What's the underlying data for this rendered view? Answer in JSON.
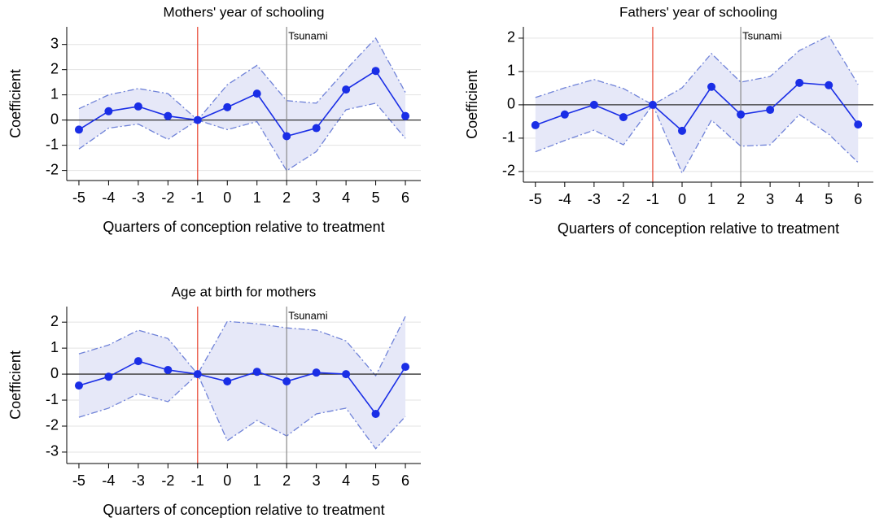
{
  "chart_data": [
    {
      "type": "line",
      "title": "Mothers' year of schooling",
      "xlabel": "Quarters of conception relative to treatment",
      "ylabel": "Coefficient",
      "x": [
        -5,
        -4,
        -3,
        -2,
        -1,
        0,
        1,
        2,
        3,
        4,
        5,
        6
      ],
      "values": [
        -0.38,
        0.35,
        0.54,
        0.16,
        0,
        0.51,
        1.05,
        -0.64,
        -0.32,
        1.21,
        1.95,
        0.16
      ],
      "upper": [
        0.45,
        1.0,
        1.25,
        1.05,
        0,
        1.4,
        2.17,
        0.77,
        0.67,
        2.0,
        3.25,
        1.1
      ],
      "lower": [
        -1.15,
        -0.32,
        -0.16,
        -0.77,
        0,
        -0.38,
        -0.06,
        -2.01,
        -1.25,
        0.41,
        0.67,
        -0.73
      ],
      "xlim": [
        -5.41,
        6.52
      ],
      "ylim": [
        -2.4,
        3.7
      ],
      "xticks": [
        -5,
        -4,
        -3,
        -2,
        -1,
        0,
        1,
        2,
        3,
        4,
        5,
        6
      ],
      "yticks": [
        -2,
        -1,
        0,
        1,
        2,
        3
      ],
      "hline": 0,
      "vlines": [
        {
          "x": -1,
          "color": "#e8402c"
        },
        {
          "x": 2,
          "color": "#8a8a8a",
          "label": "Tsunami"
        }
      ],
      "color": "#1a2ee6",
      "band_color": "#e6e8f8",
      "band_edge": "#6f82d8",
      "grid": true
    },
    {
      "type": "line",
      "title": "Fathers' year of schooling",
      "xlabel": "Quarters of conception relative to treatment",
      "ylabel": "Coefficient",
      "x": [
        -5,
        -4,
        -3,
        -2,
        -1,
        0,
        1,
        2,
        3,
        4,
        5,
        6
      ],
      "values": [
        -0.61,
        -0.29,
        0,
        -0.37,
        0,
        -0.78,
        0.54,
        -0.29,
        -0.15,
        0.66,
        0.59,
        -0.59
      ],
      "upper": [
        0.22,
        0.51,
        0.76,
        0.49,
        0,
        0.51,
        1.54,
        0.68,
        0.85,
        1.63,
        2.07,
        0.61
      ],
      "lower": [
        -1.41,
        -1.07,
        -0.76,
        -1.2,
        0,
        -2.05,
        -0.46,
        -1.24,
        -1.2,
        -0.29,
        -0.88,
        -1.73
      ],
      "xlim": [
        -5.41,
        6.52
      ],
      "ylim": [
        -2.32,
        2.34
      ],
      "xticks": [
        -5,
        -4,
        -3,
        -2,
        -1,
        0,
        1,
        2,
        3,
        4,
        5,
        6
      ],
      "yticks": [
        -2,
        -1,
        0,
        1,
        2
      ],
      "hline": 0,
      "vlines": [
        {
          "x": -1,
          "color": "#e8402c"
        },
        {
          "x": 2,
          "color": "#8a8a8a",
          "label": "Tsunami"
        }
      ],
      "color": "#1a2ee6",
      "band_color": "#e6e8f8",
      "band_edge": "#6f82d8",
      "grid": true
    },
    {
      "type": "line",
      "title": "Age at birth for mothers",
      "xlabel": "Quarters of conception relative to treatment",
      "ylabel": "Coefficient",
      "x": [
        -5,
        -4,
        -3,
        -2,
        -1,
        0,
        1,
        2,
        3,
        4,
        5,
        6
      ],
      "values": [
        -0.44,
        -0.1,
        0.5,
        0.16,
        0,
        -0.28,
        0.09,
        -0.28,
        0.06,
        0,
        -1.53,
        0.28
      ],
      "upper": [
        0.78,
        1.12,
        1.69,
        1.37,
        0,
        2.03,
        1.94,
        1.78,
        1.69,
        1.28,
        -0.06,
        2.22
      ],
      "lower": [
        -1.66,
        -1.31,
        -0.75,
        -1.06,
        0,
        -2.56,
        -1.78,
        -2.38,
        -1.53,
        -1.31,
        -2.87,
        -1.63
      ],
      "xlim": [
        -5.41,
        6.52
      ],
      "ylim": [
        -3.44,
        2.6
      ],
      "xticks": [
        -5,
        -4,
        -3,
        -2,
        -1,
        0,
        1,
        2,
        3,
        4,
        5,
        6
      ],
      "yticks": [
        -3,
        -2,
        -1,
        0,
        1,
        2
      ],
      "hline": 0,
      "vlines": [
        {
          "x": -1,
          "color": "#e8402c"
        },
        {
          "x": 2,
          "color": "#8a8a8a",
          "label": "Tsunami"
        }
      ],
      "color": "#1a2ee6",
      "band_color": "#e6e8f8",
      "band_edge": "#6f82d8",
      "grid": true
    }
  ]
}
